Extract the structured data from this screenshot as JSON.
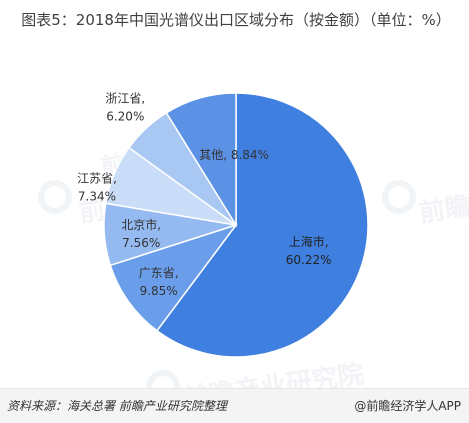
{
  "title": "图表5：2018年中国光谱仪出口区域分布（按金额）（单位：%）",
  "chart_data": {
    "type": "pie",
    "title": "图表5：2018年中国光谱仪出口区域分布（按金额）（单位：%）",
    "unit": "%",
    "slices": [
      {
        "label": "上海市",
        "value": 60.22,
        "display": "60.22%",
        "color": "#3f7fe0"
      },
      {
        "label": "广东省",
        "value": 9.85,
        "display": "9.85%",
        "color": "#6a9eea"
      },
      {
        "label": "北京市",
        "value": 7.56,
        "display": "7.56%",
        "color": "#94baf1"
      },
      {
        "label": "江苏省",
        "value": 7.34,
        "display": "7.34%",
        "color": "#c9ddf8"
      },
      {
        "label": "浙江省",
        "value": 6.2,
        "display": "6.20%",
        "color": "#a8c8f3"
      },
      {
        "label": "其他",
        "value": 8.84,
        "display": "8.84%",
        "color": "#5b92e5"
      }
    ]
  },
  "watermark": {
    "text": "前瞻产业研究院"
  },
  "footer": {
    "source": "资料来源：海关总署  前瞻产业研究院整理",
    "brand": "@前瞻经济学人APP"
  }
}
